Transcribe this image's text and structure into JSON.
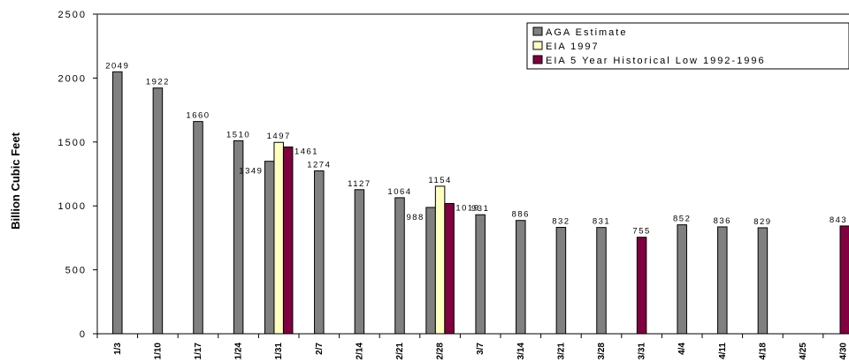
{
  "chart_data": {
    "type": "bar",
    "ylabel": "Billion Cubic Feet",
    "ylim": [
      0,
      2500
    ],
    "yticks": [
      "0",
      "500",
      "1000",
      "1500",
      "2000",
      "2500"
    ],
    "categories": [
      "1/3",
      "1/10",
      "1/17",
      "1/24",
      "1/31",
      "2/7",
      "2/14",
      "2/21",
      "2/28",
      "3/7",
      "3/14",
      "3/21",
      "3/28",
      "3/31",
      "4/4",
      "4/11",
      "4/18",
      "4/25",
      "4/30"
    ],
    "legend_position": "top-right",
    "series": [
      {
        "name": "AGA Estimate",
        "color": "#808080",
        "values": [
          2049,
          1922,
          1660,
          1510,
          1349,
          1274,
          1127,
          1064,
          988,
          931,
          886,
          832,
          831,
          null,
          852,
          836,
          829,
          null,
          null
        ],
        "labels": [
          "2049",
          "1922",
          "1660",
          "1510",
          "1349",
          "1274",
          "1127",
          "1064",
          "988",
          "931",
          "886",
          "832",
          "831",
          null,
          "852",
          "836",
          "829",
          null,
          null
        ]
      },
      {
        "name": "EIA 1997",
        "color": "#ffffc0",
        "values": [
          null,
          null,
          null,
          null,
          1497,
          null,
          null,
          null,
          1154,
          null,
          null,
          null,
          null,
          null,
          null,
          null,
          null,
          null,
          null
        ],
        "labels": [
          null,
          null,
          null,
          null,
          "1497",
          null,
          null,
          null,
          "1154",
          null,
          null,
          null,
          null,
          null,
          null,
          null,
          null,
          null,
          null
        ]
      },
      {
        "name": "EIA 5 Year Historical Low 1992-1996",
        "color": "#800040",
        "values": [
          null,
          null,
          null,
          null,
          1461,
          null,
          null,
          null,
          1019,
          null,
          null,
          null,
          null,
          755,
          null,
          null,
          null,
          null,
          843
        ],
        "labels": [
          null,
          null,
          null,
          null,
          "1461",
          null,
          null,
          null,
          "1019",
          null,
          null,
          null,
          null,
          "755",
          null,
          null,
          null,
          null,
          "843"
        ]
      }
    ]
  }
}
